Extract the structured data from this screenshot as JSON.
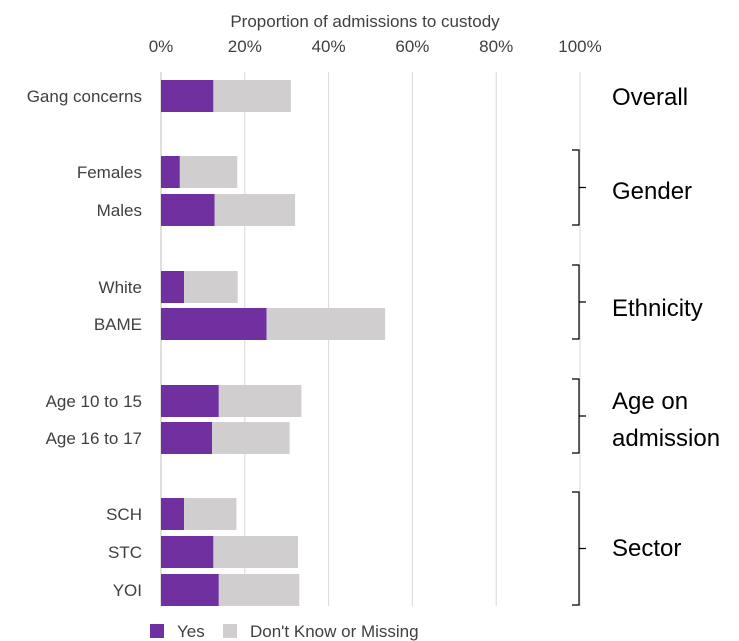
{
  "chart_data": {
    "type": "bar",
    "orientation": "horizontal",
    "stacked": true,
    "title": "Proportion of admissions to custody",
    "axis_position": "top",
    "xlim": [
      0,
      100
    ],
    "x_ticks": [
      "0%",
      "20%",
      "40%",
      "60%",
      "80%",
      "100%"
    ],
    "grid": true,
    "categories": [
      "Gang concerns",
      "Females",
      "Males",
      "White",
      "BAME",
      "Age 10 to 15",
      "Age 16 to 17",
      "SCH",
      "STC",
      "YOI"
    ],
    "series": [
      {
        "name": "Yes",
        "color": "#7030A0",
        "values": [
          12.5,
          4.5,
          12.8,
          5.5,
          25.2,
          13.8,
          12.2,
          5.5,
          12.5,
          13.8
        ]
      },
      {
        "name": "Don't Know or Missing",
        "color": "#D0CECE",
        "values": [
          18.5,
          13.7,
          19.2,
          12.8,
          28.3,
          19.7,
          18.5,
          12.5,
          20.2,
          19.2
        ]
      }
    ],
    "groups": [
      {
        "label": "Overall",
        "label_lines": [
          "Overall"
        ],
        "members": [
          0
        ],
        "bracket": false
      },
      {
        "label": "Gender",
        "label_lines": [
          "Gender"
        ],
        "members": [
          1,
          2
        ],
        "bracket": true
      },
      {
        "label": "Ethnicity",
        "label_lines": [
          "Ethnicity"
        ],
        "members": [
          3,
          4
        ],
        "bracket": true
      },
      {
        "label": "Age on admission",
        "label_lines": [
          "Age on",
          "admission"
        ],
        "members": [
          5,
          6
        ],
        "bracket": true
      },
      {
        "label": "Sector",
        "label_lines": [
          "Sector"
        ],
        "members": [
          7,
          8,
          9
        ],
        "bracket": true
      }
    ],
    "legend_position": "bottom"
  }
}
